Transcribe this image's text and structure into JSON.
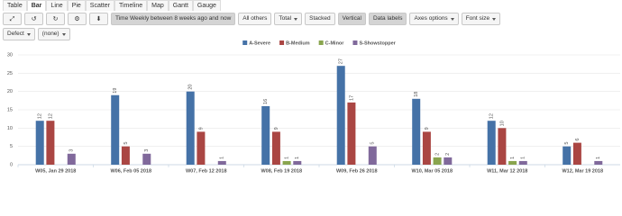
{
  "tabs": [
    "Table",
    "Bar",
    "Line",
    "Pie",
    "Scatter",
    "Timeline",
    "Map",
    "Gantt",
    "Gauge"
  ],
  "toolbar": [
    "Time Weekly between 8 weeks ago and now",
    "All others",
    "Total",
    "Stacked",
    "Vertical",
    "Data labels",
    "Axes options",
    "Font size"
  ],
  "filters": [
    "Defect",
    "(none)"
  ],
  "chart_data": {
    "type": "bar",
    "categories": [
      "W05, Jan 29 2018",
      "W06, Feb 05 2018",
      "W07, Feb 12 2018",
      "W08, Feb 19 2018",
      "W09, Feb 26 2018",
      "W10, Mar 05 2018",
      "W11, Mar 12 2018",
      "W12, Mar 19 2018"
    ],
    "series": [
      {
        "name": "A-Severe",
        "color": "#4572a7",
        "values": [
          12,
          19,
          20,
          16,
          27,
          18,
          12,
          5
        ]
      },
      {
        "name": "B-Medium",
        "color": "#aa4643",
        "values": [
          12,
          5,
          9,
          9,
          17,
          9,
          10,
          6
        ]
      },
      {
        "name": "C-Minor",
        "color": "#89a54e",
        "values": [
          null,
          null,
          null,
          1,
          null,
          2,
          1,
          null
        ]
      },
      {
        "name": "S-Showstopper",
        "color": "#80699b",
        "values": [
          3,
          3,
          1,
          1,
          5,
          2,
          1,
          1
        ]
      }
    ],
    "ylim": [
      0,
      30
    ],
    "yticks": [
      0,
      5,
      10,
      15,
      20,
      25,
      30
    ],
    "grid": true,
    "data_labels": true,
    "legend": "top"
  }
}
